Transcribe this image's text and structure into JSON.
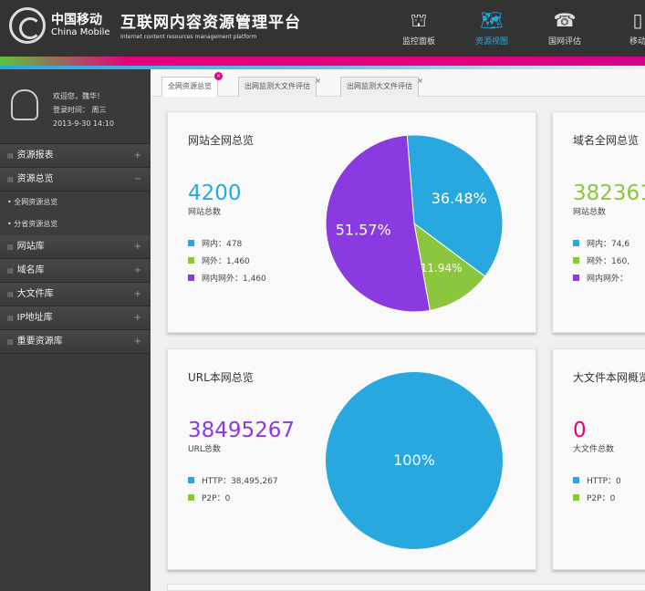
{
  "header": {
    "logo_cn": "中国移动",
    "logo_en": "China Mobile",
    "title_cn": "互联网内容资源管理平台",
    "title_en": "Internet content resources management platform",
    "nav": [
      {
        "label": "监控面板",
        "icon": "monitor-icon"
      },
      {
        "label": "资源视图",
        "icon": "map-icon",
        "active": true
      },
      {
        "label": "国网评估",
        "icon": "phone-icon"
      },
      {
        "label": "移动",
        "icon": "mobile-icon"
      }
    ]
  },
  "sidebar": {
    "welcome": "欢迎您，魏华！",
    "login_label": "登录时间：  周三",
    "login_time": "2013-9-30   14:10",
    "menu": [
      "资源报表",
      "资源总览",
      "网站库",
      "域名库",
      "大文件库",
      "IP地址库",
      "重要资源库"
    ],
    "submenu": [
      "全网资源总览",
      "分省资源总览"
    ]
  },
  "tabs": [
    "全网资源总览",
    "出网监测大文件评估",
    "出网监测大文件评估"
  ],
  "colors": {
    "blue": "#29a8e0",
    "green": "#8cc63f",
    "purple": "#8a3be0",
    "pink": "#e6007e"
  },
  "cards": [
    {
      "title": "网站全网总览",
      "total": "4200",
      "total_label": "网站总数",
      "legend": [
        "网内：478",
        "网外：1,460",
        "网内网外：1,460"
      ]
    },
    {
      "title": "域名全网总览",
      "total": "382361",
      "total_label": "网站总数",
      "legend": [
        "网内：74,6",
        "网外：160,",
        "网内网外："
      ]
    },
    {
      "title": "URL本网总览",
      "total": "38495267",
      "total_label": "URL总数",
      "legend": [
        "HTTP：38,495,267",
        "P2P：0"
      ]
    },
    {
      "title": "大文件本网概览",
      "total": "0",
      "total_label": "大文件总数",
      "legend": [
        "HTTP：0",
        "P2P：0"
      ]
    }
  ],
  "chart_data": [
    {
      "type": "pie",
      "labels": [
        "36.48%",
        "11.94%",
        "51.57%"
      ],
      "values": [
        36.48,
        11.94,
        51.57
      ],
      "colors": [
        "#29a8e0",
        "#8cc63f",
        "#8a3be0"
      ]
    },
    {
      "type": "pie",
      "labels": [
        "100%"
      ],
      "values": [
        100
      ],
      "colors": [
        "#29a8e0"
      ]
    }
  ]
}
